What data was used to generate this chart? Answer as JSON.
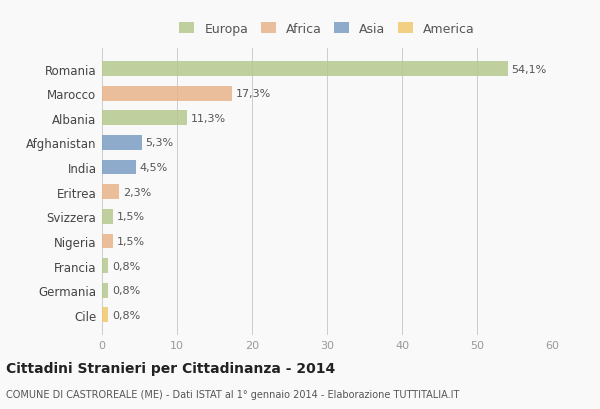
{
  "categories": [
    "Romania",
    "Marocco",
    "Albania",
    "Afghanistan",
    "India",
    "Eritrea",
    "Svizzera",
    "Nigeria",
    "Francia",
    "Germania",
    "Cile"
  ],
  "values": [
    54.1,
    17.3,
    11.3,
    5.3,
    4.5,
    2.3,
    1.5,
    1.5,
    0.8,
    0.8,
    0.8
  ],
  "labels": [
    "54,1%",
    "17,3%",
    "11,3%",
    "5,3%",
    "4,5%",
    "2,3%",
    "1,5%",
    "1,5%",
    "0,8%",
    "0,8%",
    "0,8%"
  ],
  "colors": [
    "#b5c98e",
    "#e8b48a",
    "#b5c98e",
    "#7b9ec4",
    "#7b9ec4",
    "#e8b48a",
    "#b5c98e",
    "#e8b48a",
    "#b5c98e",
    "#b5c98e",
    "#f0c96e"
  ],
  "legend": {
    "Europa": "#b5c98e",
    "Africa": "#e8b48a",
    "Asia": "#7b9ec4",
    "America": "#f0c96e"
  },
  "xlim": [
    0,
    60
  ],
  "xticks": [
    0,
    10,
    20,
    30,
    40,
    50,
    60
  ],
  "title": "Cittadini Stranieri per Cittadinanza - 2014",
  "subtitle": "COMUNE DI CASTROREALE (ME) - Dati ISTAT al 1° gennaio 2014 - Elaborazione TUTTITALIA.IT",
  "background_color": "#f9f9f9",
  "grid_color": "#cccccc",
  "bar_alpha": 0.85
}
